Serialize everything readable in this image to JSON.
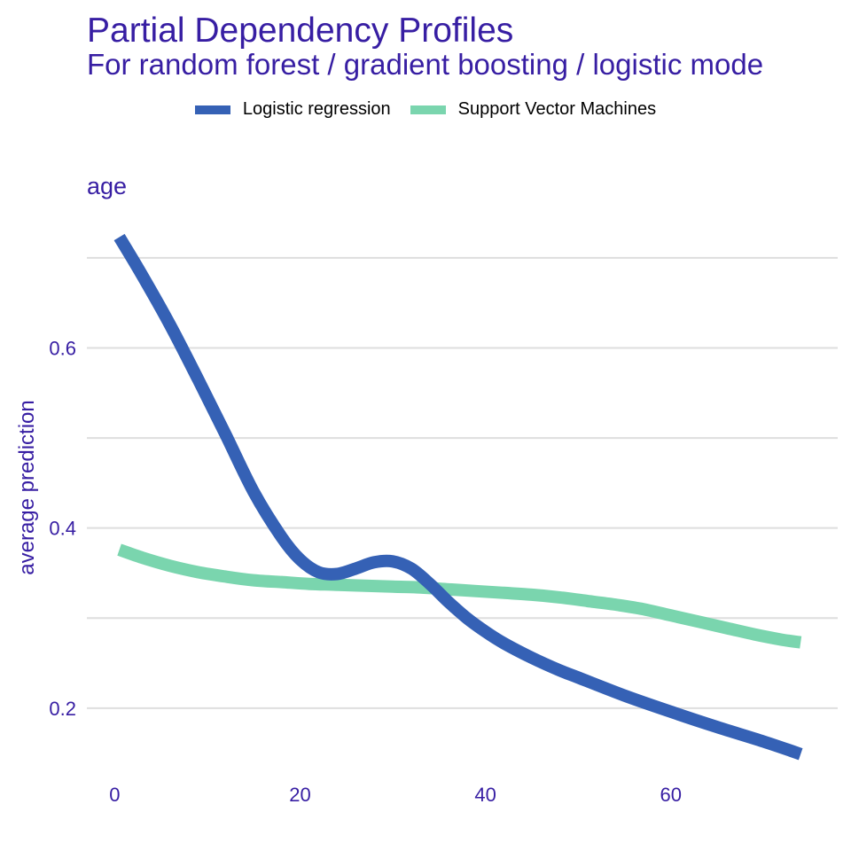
{
  "colors": {
    "text": "#371ea3",
    "grid": "#dedede",
    "logistic": "#3561b5",
    "svm": "#7ad5ae"
  },
  "header": {
    "title": "Partial Dependency Profiles",
    "subtitle": "For random forest / gradient boosting / logistic mode"
  },
  "chart_data": {
    "type": "line",
    "title": "Partial Dependency Profiles",
    "subtitle": "For random forest / gradient boosting / logistic mode",
    "panel_label": "age",
    "xlabel": "",
    "ylabel": "average prediction",
    "xlim": [
      -3,
      78
    ],
    "ylim": [
      0.13,
      0.755
    ],
    "x_ticks": [
      0,
      20,
      40,
      60
    ],
    "x_tick_labels": [
      "0",
      "20",
      "40",
      "60"
    ],
    "y_ticks": [
      0.2,
      0.4,
      0.6
    ],
    "y_tick_labels": [
      "0.2",
      "0.4",
      "0.6"
    ],
    "y_minor_grid": [
      0.3,
      0.5,
      0.7
    ],
    "grid": "horizontal",
    "legend_position": "top",
    "series": [
      {
        "name": "Logistic regression",
        "color": "#3561b5",
        "x": [
          0.5,
          3,
          6,
          9,
          12,
          15,
          18,
          20,
          22,
          24,
          26,
          28,
          30,
          32,
          34,
          36,
          38,
          40,
          42,
          45,
          48,
          50,
          55,
          60,
          65,
          70,
          74
        ],
        "y": [
          0.723,
          0.68,
          0.625,
          0.565,
          0.503,
          0.44,
          0.39,
          0.365,
          0.351,
          0.349,
          0.355,
          0.362,
          0.363,
          0.355,
          0.338,
          0.318,
          0.3,
          0.285,
          0.272,
          0.256,
          0.242,
          0.234,
          0.214,
          0.196,
          0.179,
          0.163,
          0.149
        ]
      },
      {
        "name": "Support Vector Machines",
        "color": "#7ad5ae",
        "x": [
          0.5,
          3,
          6,
          9,
          12,
          15,
          18,
          21,
          24,
          27,
          30,
          33,
          36,
          39,
          42,
          45,
          48,
          51,
          54,
          57,
          60,
          63,
          66,
          69,
          72,
          74
        ],
        "y": [
          0.376,
          0.367,
          0.358,
          0.351,
          0.346,
          0.342,
          0.34,
          0.338,
          0.337,
          0.336,
          0.335,
          0.334,
          0.332,
          0.33,
          0.328,
          0.326,
          0.323,
          0.319,
          0.315,
          0.31,
          0.303,
          0.296,
          0.289,
          0.282,
          0.276,
          0.273
        ]
      }
    ]
  }
}
